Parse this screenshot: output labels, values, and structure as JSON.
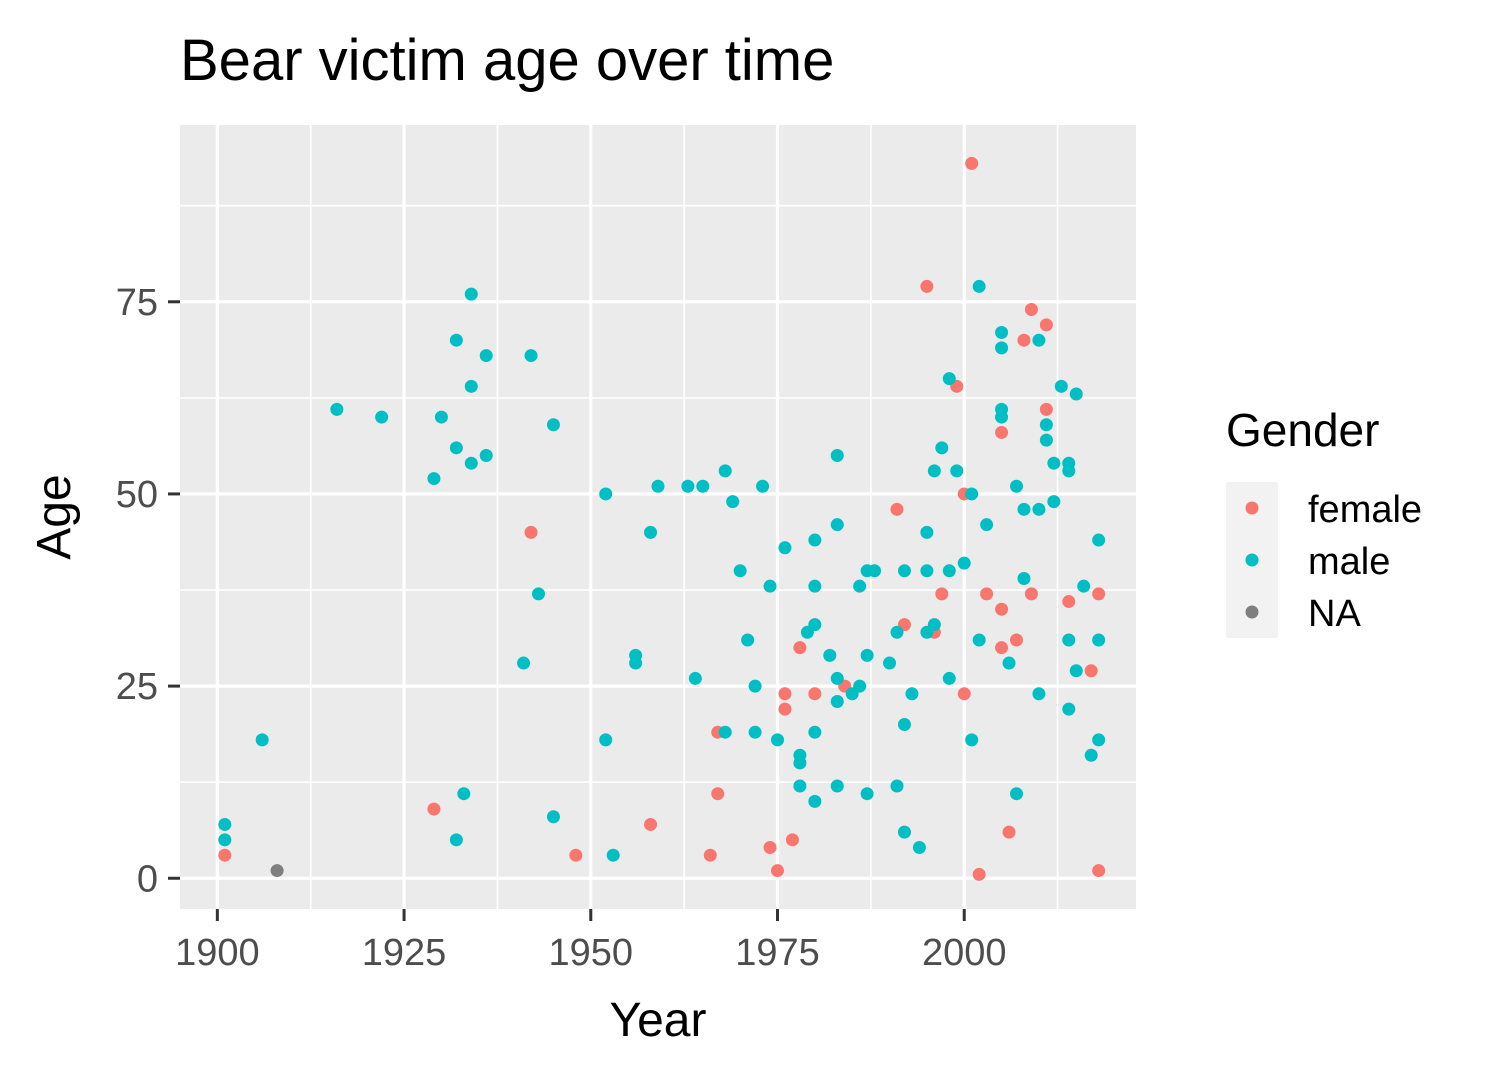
{
  "chart_data": {
    "type": "scatter",
    "title": "Bear victim age over time",
    "xlabel": "Year",
    "ylabel": "Age",
    "xlim": [
      1895,
      2023
    ],
    "ylim": [
      -4,
      98
    ],
    "x_ticks": [
      1900,
      1925,
      1950,
      1975,
      2000
    ],
    "y_ticks": [
      0,
      25,
      50,
      75
    ],
    "x_tick_labels": [
      "1900",
      "1925",
      "1950",
      "1975",
      "2000"
    ],
    "y_tick_labels": [
      "0",
      "25",
      "50",
      "75"
    ],
    "grid": true,
    "legend": {
      "title": "Gender",
      "position": "right",
      "entries": [
        {
          "label": "female",
          "color": "#F8766D"
        },
        {
          "label": "male",
          "color": "#00BFC4"
        },
        {
          "label": "NA",
          "color": "#7F7F7F"
        }
      ]
    },
    "series": [
      {
        "name": "female",
        "color": "#F8766D",
        "points": [
          [
            1901,
            3
          ],
          [
            1929,
            9
          ],
          [
            1942,
            45
          ],
          [
            1948,
            3
          ],
          [
            1958,
            7
          ],
          [
            1966,
            3
          ],
          [
            1967,
            11
          ],
          [
            1967,
            19
          ],
          [
            1974,
            4
          ],
          [
            1975,
            1
          ],
          [
            1976,
            22
          ],
          [
            1976,
            24
          ],
          [
            1977,
            5
          ],
          [
            1978,
            30
          ],
          [
            1980,
            24
          ],
          [
            1984,
            25
          ],
          [
            1991,
            48
          ],
          [
            1992,
            33
          ],
          [
            1995,
            77
          ],
          [
            1996,
            32
          ],
          [
            1997,
            37
          ],
          [
            1999,
            64
          ],
          [
            2000,
            50
          ],
          [
            2000,
            24
          ],
          [
            2001,
            93
          ],
          [
            2002,
            0.5
          ],
          [
            2003,
            37
          ],
          [
            2005,
            58
          ],
          [
            2005,
            35
          ],
          [
            2005,
            30
          ],
          [
            2006,
            6
          ],
          [
            2007,
            31
          ],
          [
            2008,
            70
          ],
          [
            2009,
            74
          ],
          [
            2009,
            37
          ],
          [
            2011,
            72
          ],
          [
            2011,
            61
          ],
          [
            2014,
            36
          ],
          [
            2017,
            27
          ],
          [
            2018,
            37
          ],
          [
            2018,
            1
          ]
        ]
      },
      {
        "name": "male",
        "color": "#00BFC4",
        "points": [
          [
            1901,
            7
          ],
          [
            1901,
            5
          ],
          [
            1906,
            18
          ],
          [
            1916,
            61
          ],
          [
            1922,
            60
          ],
          [
            1929,
            52
          ],
          [
            1930,
            60
          ],
          [
            1932,
            70
          ],
          [
            1932,
            56
          ],
          [
            1932,
            5
          ],
          [
            1933,
            11
          ],
          [
            1934,
            76
          ],
          [
            1934,
            64
          ],
          [
            1934,
            54
          ],
          [
            1936,
            68
          ],
          [
            1936,
            55
          ],
          [
            1941,
            28
          ],
          [
            1942,
            68
          ],
          [
            1943,
            37
          ],
          [
            1945,
            59
          ],
          [
            1945,
            8
          ],
          [
            1952,
            50
          ],
          [
            1952,
            18
          ],
          [
            1953,
            3
          ],
          [
            1956,
            29
          ],
          [
            1956,
            28
          ],
          [
            1958,
            45
          ],
          [
            1959,
            51
          ],
          [
            1963,
            51
          ],
          [
            1964,
            26
          ],
          [
            1965,
            51
          ],
          [
            1968,
            53
          ],
          [
            1968,
            19
          ],
          [
            1969,
            49
          ],
          [
            1970,
            40
          ],
          [
            1971,
            31
          ],
          [
            1972,
            25
          ],
          [
            1972,
            19
          ],
          [
            1973,
            51
          ],
          [
            1974,
            38
          ],
          [
            1975,
            18
          ],
          [
            1976,
            43
          ],
          [
            1978,
            16
          ],
          [
            1978,
            15
          ],
          [
            1978,
            12
          ],
          [
            1979,
            32
          ],
          [
            1980,
            44
          ],
          [
            1980,
            38
          ],
          [
            1980,
            33
          ],
          [
            1980,
            19
          ],
          [
            1980,
            10
          ],
          [
            1982,
            29
          ],
          [
            1983,
            55
          ],
          [
            1983,
            46
          ],
          [
            1983,
            26
          ],
          [
            1983,
            23
          ],
          [
            1983,
            12
          ],
          [
            1985,
            24
          ],
          [
            1986,
            38
          ],
          [
            1986,
            25
          ],
          [
            1987,
            40
          ],
          [
            1987,
            29
          ],
          [
            1987,
            11
          ],
          [
            1988,
            40
          ],
          [
            1990,
            28
          ],
          [
            1991,
            32
          ],
          [
            1991,
            12
          ],
          [
            1992,
            40
          ],
          [
            1992,
            20
          ],
          [
            1992,
            6
          ],
          [
            1993,
            24
          ],
          [
            1994,
            4
          ],
          [
            1995,
            45
          ],
          [
            1995,
            40
          ],
          [
            1995,
            32
          ],
          [
            1996,
            53
          ],
          [
            1996,
            33
          ],
          [
            1997,
            56
          ],
          [
            1998,
            65
          ],
          [
            1998,
            40
          ],
          [
            1998,
            26
          ],
          [
            1999,
            53
          ],
          [
            2000,
            41
          ],
          [
            2001,
            50
          ],
          [
            2001,
            18
          ],
          [
            2002,
            77
          ],
          [
            2002,
            31
          ],
          [
            2003,
            46
          ],
          [
            2005,
            71
          ],
          [
            2005,
            69
          ],
          [
            2005,
            61
          ],
          [
            2005,
            60
          ],
          [
            2006,
            28
          ],
          [
            2007,
            51
          ],
          [
            2007,
            11
          ],
          [
            2008,
            48
          ],
          [
            2008,
            39
          ],
          [
            2010,
            70
          ],
          [
            2010,
            48
          ],
          [
            2010,
            24
          ],
          [
            2011,
            59
          ],
          [
            2011,
            57
          ],
          [
            2012,
            54
          ],
          [
            2012,
            49
          ],
          [
            2013,
            64
          ],
          [
            2014,
            54
          ],
          [
            2014,
            53
          ],
          [
            2014,
            31
          ],
          [
            2014,
            22
          ],
          [
            2015,
            63
          ],
          [
            2015,
            27
          ],
          [
            2016,
            38
          ],
          [
            2017,
            16
          ],
          [
            2018,
            44
          ],
          [
            2018,
            31
          ],
          [
            2018,
            18
          ]
        ]
      },
      {
        "name": "NA",
        "color": "#7F7F7F",
        "points": [
          [
            1908,
            1
          ]
        ]
      }
    ]
  }
}
